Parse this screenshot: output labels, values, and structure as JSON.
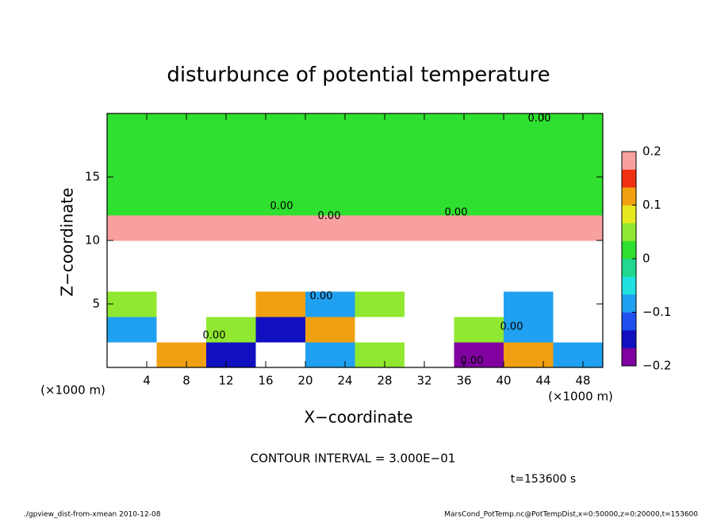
{
  "chart_data": {
    "type": "heatmap",
    "title": "disturbunce of potential temperature",
    "xlabel": "X−coordinate",
    "ylabel": "Z−coordinate",
    "x_unit": "(×1000 m)",
    "y_unit": "(×1000 m)",
    "x": [
      2.5,
      7.5,
      12.5,
      17.5,
      22.5,
      27.5,
      32.5,
      37.5,
      42.5,
      47.5
    ],
    "y": [
      1,
      3,
      5,
      7,
      9,
      11,
      13,
      15,
      17,
      19
    ],
    "values": [
      [
        0.3,
        0.1,
        -0.15,
        0.3,
        -0.1,
        0.05,
        0.3,
        -0.2,
        0.1,
        -0.1
      ],
      [
        -0.1,
        0.3,
        0.05,
        -0.15,
        0.1,
        -0.3,
        0.3,
        0.05,
        -0.1,
        0.3
      ],
      [
        0.05,
        -0.25,
        0.3,
        0.1,
        -0.1,
        0.05,
        -0.3,
        0.3,
        -0.1,
        0.3
      ],
      [
        0.3,
        0.3,
        0.3,
        -0.3,
        0.3,
        0.3,
        0.3,
        0.3,
        0.3,
        0.3
      ],
      [
        0.3,
        0.3,
        0.3,
        0.3,
        -0.3,
        0.3,
        0.3,
        0.3,
        0.3,
        0.3
      ],
      [
        0.18,
        0.18,
        0.18,
        0.18,
        0.18,
        0.18,
        0.18,
        0.18,
        0.18,
        0.18
      ],
      [
        0.03,
        0.03,
        0.03,
        0.03,
        0.03,
        0.03,
        0.03,
        0.03,
        0.03,
        0.03
      ],
      [
        0.01,
        0.01,
        0.01,
        0.01,
        0.01,
        0.01,
        0.01,
        0.01,
        0.01,
        0.01
      ],
      [
        0,
        0,
        0,
        0,
        0,
        0,
        0,
        0,
        0,
        0
      ],
      [
        0,
        0,
        0,
        0,
        0,
        0,
        0,
        0,
        0,
        0
      ]
    ],
    "xlim": [
      0,
      50
    ],
    "ylim": [
      0,
      20
    ],
    "xticks": [
      4,
      8,
      12,
      16,
      20,
      24,
      28,
      32,
      36,
      40,
      44,
      48
    ],
    "yticks": [
      5,
      10,
      15
    ],
    "clim": [
      -0.2,
      0.2
    ],
    "cticks": [
      {
        "value": -0.2,
        "label": "−0.2"
      },
      {
        "value": -0.1,
        "label": "−0.1"
      },
      0,
      0.1,
      0.2
    ],
    "colors": [
      "#8000a0",
      "#1010c0",
      "#2050f0",
      "#20a0f0",
      "#20e0e0",
      "#20d890",
      "#30e030",
      "#90e830",
      "#e8e820",
      "#f0a010",
      "#f03010",
      "#f8a0a0"
    ],
    "contour_labels": [
      {
        "text": "0.00",
        "x": 43.6,
        "y": 19.6
      },
      {
        "text": "0.00",
        "x": 17.6,
        "y": 12.7
      },
      {
        "text": "0.00",
        "x": 22.4,
        "y": 11.9
      },
      {
        "text": "0.00",
        "x": 35.2,
        "y": 12.2
      },
      {
        "text": "0.00",
        "x": 10.8,
        "y": 2.5
      },
      {
        "text": "0.00",
        "x": 21.6,
        "y": 5.6
      },
      {
        "text": "0.00",
        "x": 40.8,
        "y": 3.2
      },
      {
        "text": "0.00",
        "x": 36.8,
        "y": 0.5
      }
    ],
    "contour_interval": "CONTOUR INTERVAL = 3.000E−01",
    "time": "t=153600 s",
    "footer_left": "./gpview_dist-from-xmean  2010-12-08",
    "footer_right": "MarsCond_PotTemp.nc@PotTempDist,x=0:50000,z=0:20000,t=153600"
  }
}
